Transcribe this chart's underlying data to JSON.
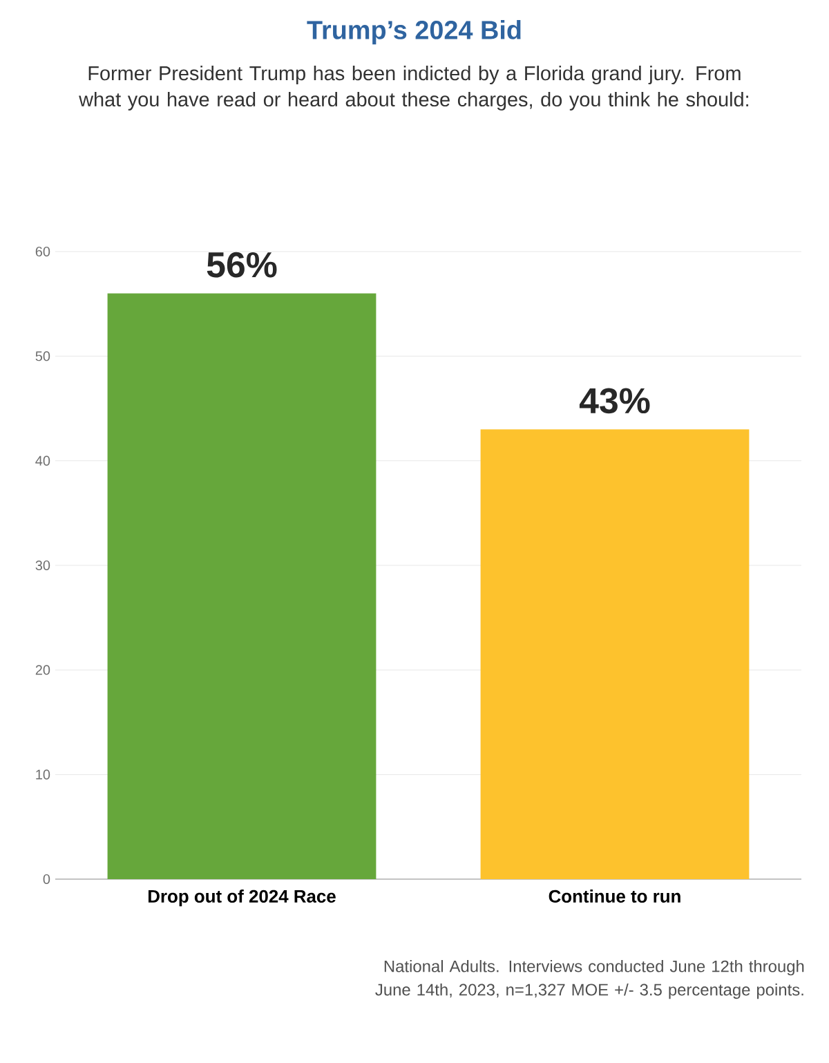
{
  "chart_data": {
    "type": "bar",
    "title": "Trump’s 2024 Bid",
    "subtitle": "Former President Trump has been indicted by a Florida grand jury. From what you have read or heard about these charges, do you think he should:",
    "categories": [
      "Drop out of 2024 Race",
      "Continue to run"
    ],
    "values": [
      56,
      43
    ],
    "colors": [
      "#66a73b",
      "#fdc22d"
    ],
    "value_labels": [
      "56%",
      "43%"
    ],
    "ylim": [
      0,
      60
    ],
    "yticks": [
      0,
      10,
      20,
      30,
      40,
      50,
      60
    ],
    "grid": "y",
    "annotations": [
      "National Adults. Interviews conducted June 12th through June 14th, 2023, n=1,327 MOE +/- 3.5 percentage points."
    ]
  }
}
